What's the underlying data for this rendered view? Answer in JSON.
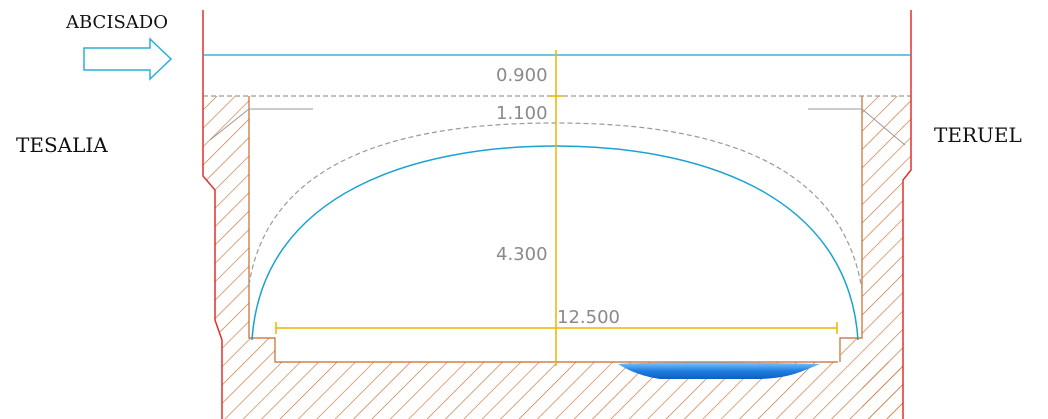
{
  "labels": {
    "abcisado": "ABCISADO",
    "tesalia": "TESALIA",
    "teruel": "TERUEL"
  },
  "dimensions": {
    "top_clearance": "0.900",
    "crown_thickness": "1.100",
    "rise": "4.300",
    "span": "12.500"
  },
  "colors": {
    "cut_axis": "#e0302a",
    "hatch": "#c8692a",
    "arch_intrados": "#1aa3cf",
    "dimension_line": "#f0b400",
    "dashed_extrados": "#9a9a9a",
    "water": "#1f7fe0",
    "arrow": "#29b0d9"
  },
  "icons": {
    "direction_arrow": "right-arrow-icon"
  }
}
